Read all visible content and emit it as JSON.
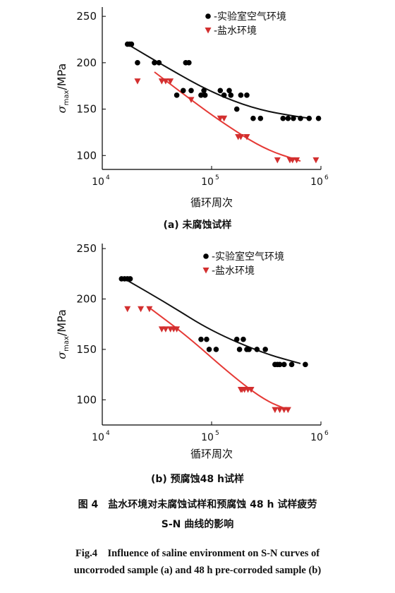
{
  "chart_data": [
    {
      "type": "scatter",
      "caption": "(a) 未腐蚀试样",
      "xlabel": "循环周次",
      "ylabel_symbol": "σ",
      "ylabel_sub": "max",
      "ylabel_unit": "/MPa",
      "xscale": "log",
      "xlim": [
        10000,
        1000000
      ],
      "ylim": [
        85,
        260
      ],
      "yticks": [
        100,
        150,
        200,
        250
      ],
      "xticks": [
        {
          "value": 10000,
          "base": "10",
          "exp": "4"
        },
        {
          "value": 100000,
          "base": "10",
          "exp": "5"
        },
        {
          "value": 1000000,
          "base": "10",
          "exp": "6"
        }
      ],
      "legend_position": "top-right",
      "series": [
        {
          "name": "-实验室空气环境",
          "marker": "circle",
          "color": "#000000",
          "points": [
            [
              17000,
              220
            ],
            [
              17800,
              220
            ],
            [
              18500,
              220
            ],
            [
              21000,
              200
            ],
            [
              30000,
              200
            ],
            [
              33000,
              200
            ],
            [
              48000,
              165
            ],
            [
              55000,
              170
            ],
            [
              58000,
              200
            ],
            [
              62000,
              200
            ],
            [
              65000,
              170
            ],
            [
              80000,
              165
            ],
            [
              85000,
              170
            ],
            [
              87000,
              165
            ],
            [
              120000,
              170
            ],
            [
              130000,
              165
            ],
            [
              145000,
              170
            ],
            [
              150000,
              165
            ],
            [
              170000,
              150
            ],
            [
              185000,
              165
            ],
            [
              210000,
              165
            ],
            [
              240000,
              140
            ],
            [
              280000,
              140
            ],
            [
              450000,
              140
            ],
            [
              500000,
              140
            ],
            [
              560000,
              140
            ],
            [
              650000,
              140
            ],
            [
              780000,
              140
            ],
            [
              950000,
              140
            ]
          ],
          "fit": [
            [
              17000,
              220
            ],
            [
              40000,
              194
            ],
            [
              100000,
              168
            ],
            [
              250000,
              150
            ],
            [
              600000,
              142
            ],
            [
              800000,
              140
            ]
          ]
        },
        {
          "name": "-盐水环境",
          "marker": "triangle-down",
          "color": "#d32f2f",
          "points": [
            [
              21000,
              180
            ],
            [
              35000,
              180
            ],
            [
              38000,
              180
            ],
            [
              42000,
              180
            ],
            [
              65000,
              160
            ],
            [
              120000,
              140
            ],
            [
              130000,
              140
            ],
            [
              175000,
              120
            ],
            [
              185000,
              120
            ],
            [
              210000,
              120
            ],
            [
              400000,
              95
            ],
            [
              520000,
              95
            ],
            [
              550000,
              95
            ],
            [
              600000,
              95
            ],
            [
              900000,
              95
            ]
          ],
          "fit": [
            [
              30000,
              190
            ],
            [
              60000,
              163
            ],
            [
              120000,
              137
            ],
            [
              300000,
              107
            ],
            [
              650000,
              94
            ]
          ]
        }
      ]
    },
    {
      "type": "scatter",
      "caption": "(b) 预腐蚀48 h试样",
      "xlabel": "循环周次",
      "ylabel_symbol": "σ",
      "ylabel_sub": "max",
      "ylabel_unit": "/MPa",
      "xscale": "log",
      "xlim": [
        10000,
        1000000
      ],
      "ylim": [
        75,
        255
      ],
      "yticks": [
        100,
        150,
        200,
        250
      ],
      "xticks": [
        {
          "value": 10000,
          "base": "10",
          "exp": "4"
        },
        {
          "value": 100000,
          "base": "10",
          "exp": "5"
        },
        {
          "value": 1000000,
          "base": "10",
          "exp": "6"
        }
      ],
      "legend_position": "top-right",
      "series": [
        {
          "name": "-实验室空气环境",
          "marker": "circle",
          "color": "#000000",
          "points": [
            [
              15000,
              220
            ],
            [
              16000,
              220
            ],
            [
              17000,
              220
            ],
            [
              18000,
              220
            ],
            [
              80000,
              160
            ],
            [
              90000,
              160
            ],
            [
              95000,
              150
            ],
            [
              110000,
              150
            ],
            [
              170000,
              160
            ],
            [
              180000,
              150
            ],
            [
              195000,
              160
            ],
            [
              210000,
              150
            ],
            [
              220000,
              150
            ],
            [
              260000,
              150
            ],
            [
              310000,
              150
            ],
            [
              380000,
              135
            ],
            [
              400000,
              135
            ],
            [
              420000,
              135
            ],
            [
              460000,
              135
            ],
            [
              540000,
              135
            ],
            [
              720000,
              135
            ]
          ],
          "fit": [
            [
              16000,
              220
            ],
            [
              40000,
              195
            ],
            [
              100000,
              168
            ],
            [
              300000,
              146
            ],
            [
              650000,
              136
            ]
          ]
        },
        {
          "name": "-盐水环境",
          "marker": "triangle-down",
          "color": "#d32f2f",
          "points": [
            [
              17000,
              190
            ],
            [
              22500,
              190
            ],
            [
              27000,
              190
            ],
            [
              35000,
              170
            ],
            [
              38000,
              170
            ],
            [
              42000,
              170
            ],
            [
              45000,
              170
            ],
            [
              48000,
              170
            ],
            [
              185000,
              110
            ],
            [
              190000,
              110
            ],
            [
              200000,
              110
            ],
            [
              215000,
              110
            ],
            [
              230000,
              110
            ],
            [
              380000,
              90
            ],
            [
              420000,
              90
            ],
            [
              460000,
              90
            ],
            [
              500000,
              90
            ]
          ],
          "fit": [
            [
              28000,
              190
            ],
            [
              60000,
              163
            ],
            [
              150000,
              125
            ],
            [
              300000,
              100
            ],
            [
              500000,
              90
            ]
          ]
        }
      ]
    }
  ],
  "figure_caption": {
    "cn_line1": "图 4　盐水环境对未腐蚀试样和预腐蚀 48 h 试样疲劳",
    "cn_line2": "S-N 曲线的影响",
    "en_line1": "Fig.4　Influence of saline environment on S-N curves of",
    "en_line2": "uncorroded sample (a) and 48 h pre-corroded sample (b)"
  }
}
